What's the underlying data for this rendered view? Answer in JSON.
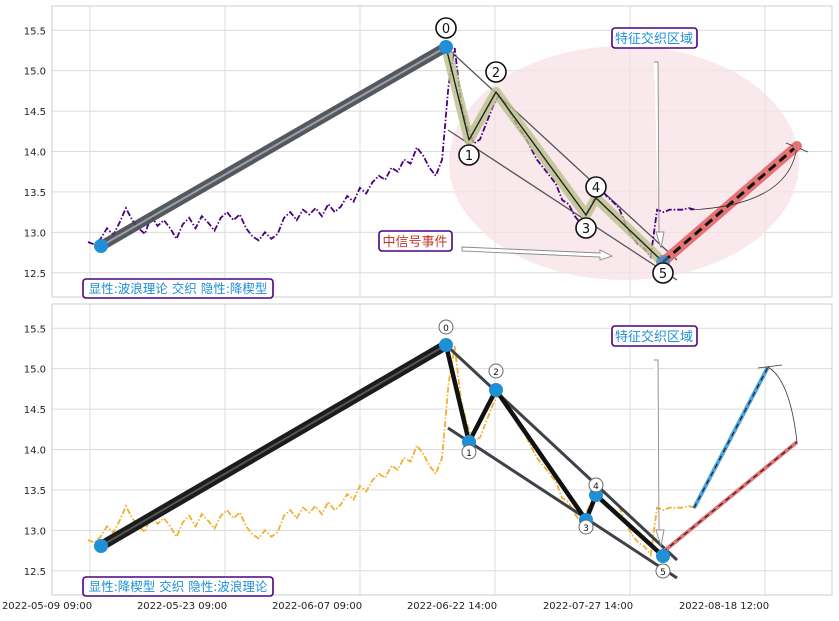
{
  "chart_data": [
    {
      "type": "line",
      "title": "",
      "x_tick_labels": [
        "2022-05-09 09:00",
        "2022-05-23 09:00",
        "2022-06-07 09:00",
        "2022-06-22 14:00",
        "2022-07-27 14:00",
        "2022-08-18 12:00"
      ],
      "ylim": [
        12.2,
        15.8
      ],
      "y_ticks": [
        12.5,
        13.0,
        13.5,
        14.0,
        14.5,
        15.0,
        15.5
      ],
      "grid": true,
      "series_color": "#4b0082",
      "series_style": "dash-dot",
      "price": [
        12.88,
        12.85,
        12.92,
        13.05,
        12.97,
        13.12,
        13.3,
        13.15,
        13.05,
        12.98,
        13.2,
        13.08,
        13.15,
        13.05,
        12.92,
        13.1,
        13.18,
        13.05,
        13.2,
        13.12,
        13.02,
        13.18,
        13.25,
        13.15,
        13.22,
        13.05,
        12.95,
        12.9,
        13.0,
        12.92,
        12.98,
        13.18,
        13.25,
        13.15,
        13.28,
        13.22,
        13.3,
        13.2,
        13.35,
        13.25,
        13.32,
        13.45,
        13.38,
        13.55,
        13.48,
        13.62,
        13.7,
        13.65,
        13.8,
        13.75,
        13.9,
        13.85,
        14.05,
        13.95,
        13.8,
        13.7,
        13.9,
        14.8,
        15.28,
        14.6,
        14.3,
        14.1,
        14.15,
        14.35,
        14.55,
        14.7,
        14.6,
        14.45,
        14.3,
        14.2,
        14.05,
        13.9,
        13.8,
        13.7,
        13.6,
        13.4,
        13.35,
        13.2,
        13.1,
        13.25,
        13.4,
        13.55,
        13.45,
        13.38,
        13.3,
        13.1,
        12.95,
        12.85,
        12.8,
        12.7,
        13.28,
        13.25,
        13.28,
        13.28,
        13.28,
        13.3,
        13.28
      ],
      "wave_points": [
        {
          "label": "0",
          "value": 15.28
        },
        {
          "label": "1",
          "value": 14.08
        },
        {
          "label": "2",
          "value": 14.72
        },
        {
          "label": "3",
          "value": 13.1
        },
        {
          "label": "4",
          "value": 13.4
        },
        {
          "label": "5",
          "value": 12.65
        }
      ],
      "annotations": {
        "zone": "特征交织区域",
        "event": "中信号事件",
        "caption": "显性:波浪理论 交织 隐性:降楔型"
      }
    },
    {
      "type": "line",
      "title": "",
      "ylim": [
        12.2,
        15.8
      ],
      "y_ticks": [
        12.5,
        13.0,
        13.5,
        14.0,
        14.5,
        15.0,
        15.5
      ],
      "grid": true,
      "series_color": "#f0b030",
      "series_style": "dash-dot",
      "wave_points": [
        {
          "label": "0",
          "value": 15.28
        },
        {
          "label": "1",
          "value": 14.08
        },
        {
          "label": "2",
          "value": 14.72
        },
        {
          "label": "3",
          "value": 13.1
        },
        {
          "label": "4",
          "value": 13.4
        },
        {
          "label": "5",
          "value": 12.65
        }
      ],
      "annotations": {
        "zone": "特征交织区域",
        "caption": "显性:降楔型 交织 隐性:波浪理论"
      }
    }
  ],
  "colors": {
    "grid": "#dcdcdc",
    "wave": "#1f8fd6",
    "zone_fill": "#f7e1e6",
    "label_border": "#4b0082",
    "label_text_blue": "#1f8fd6",
    "label_text_red": "#c0392b",
    "forecast_red": "#e57373",
    "forecast_blue": "#4aa3df"
  }
}
